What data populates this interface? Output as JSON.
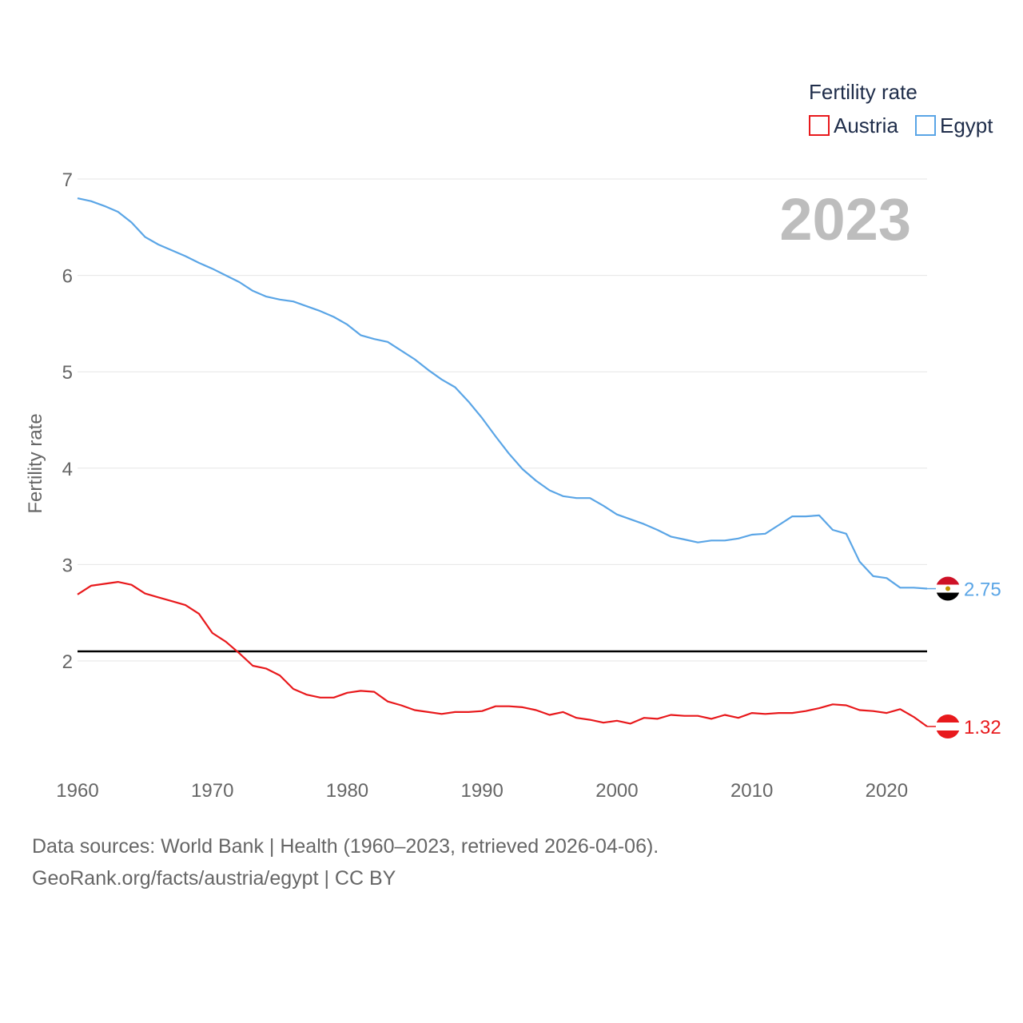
{
  "chart_data": {
    "type": "line",
    "legend_title": "Fertility rate",
    "ylabel": "Fertility rate",
    "xlabel": "",
    "current_year": "2023",
    "xlim": [
      1960,
      2023
    ],
    "ylim": [
      1.0,
      7.0
    ],
    "x_ticks": [
      1960,
      1970,
      1980,
      1990,
      2000,
      2010,
      2020
    ],
    "y_ticks": [
      2,
      3,
      4,
      5,
      6,
      7
    ],
    "reference_line": 2.1,
    "legend_position": "top-right",
    "x": [
      1960,
      1961,
      1962,
      1963,
      1964,
      1965,
      1966,
      1967,
      1968,
      1969,
      1970,
      1971,
      1972,
      1973,
      1974,
      1975,
      1976,
      1977,
      1978,
      1979,
      1980,
      1981,
      1982,
      1983,
      1984,
      1985,
      1986,
      1987,
      1988,
      1989,
      1990,
      1991,
      1992,
      1993,
      1994,
      1995,
      1996,
      1997,
      1998,
      1999,
      2000,
      2001,
      2002,
      2003,
      2004,
      2005,
      2006,
      2007,
      2008,
      2009,
      2010,
      2011,
      2012,
      2013,
      2014,
      2015,
      2016,
      2017,
      2018,
      2019,
      2020,
      2021,
      2022,
      2023
    ],
    "series": [
      {
        "name": "Austria",
        "color": "#e8191c",
        "end_label": "1.32",
        "values": [
          2.69,
          2.78,
          2.8,
          2.82,
          2.79,
          2.7,
          2.66,
          2.62,
          2.58,
          2.49,
          2.29,
          2.2,
          2.08,
          1.95,
          1.92,
          1.85,
          1.71,
          1.65,
          1.62,
          1.62,
          1.67,
          1.69,
          1.68,
          1.58,
          1.54,
          1.49,
          1.47,
          1.45,
          1.47,
          1.47,
          1.48,
          1.53,
          1.53,
          1.52,
          1.49,
          1.44,
          1.47,
          1.41,
          1.39,
          1.36,
          1.38,
          1.35,
          1.41,
          1.4,
          1.44,
          1.43,
          1.43,
          1.4,
          1.44,
          1.41,
          1.46,
          1.45,
          1.46,
          1.46,
          1.48,
          1.51,
          1.55,
          1.54,
          1.49,
          1.48,
          1.46,
          1.5,
          1.42,
          1.32
        ]
      },
      {
        "name": "Egypt",
        "color": "#5aa5e6",
        "end_label": "2.75",
        "values": [
          6.8,
          6.77,
          6.72,
          6.66,
          6.55,
          6.4,
          6.32,
          6.26,
          6.2,
          6.13,
          6.07,
          6.0,
          5.93,
          5.84,
          5.78,
          5.75,
          5.73,
          5.68,
          5.63,
          5.57,
          5.49,
          5.38,
          5.34,
          5.31,
          5.22,
          5.13,
          5.02,
          4.92,
          4.84,
          4.69,
          4.52,
          4.33,
          4.15,
          3.99,
          3.87,
          3.77,
          3.71,
          3.69,
          3.69,
          3.61,
          3.52,
          3.47,
          3.42,
          3.36,
          3.29,
          3.26,
          3.23,
          3.25,
          3.25,
          3.27,
          3.31,
          3.32,
          3.41,
          3.5,
          3.5,
          3.51,
          3.36,
          3.32,
          3.03,
          2.88,
          2.86,
          2.76,
          2.76,
          2.75
        ]
      }
    ]
  },
  "footer": {
    "line1": "Data sources: World Bank | Health (1960–2023, retrieved 2026-04-06).",
    "line2": "GeoRank.org/facts/austria/egypt | CC BY"
  }
}
